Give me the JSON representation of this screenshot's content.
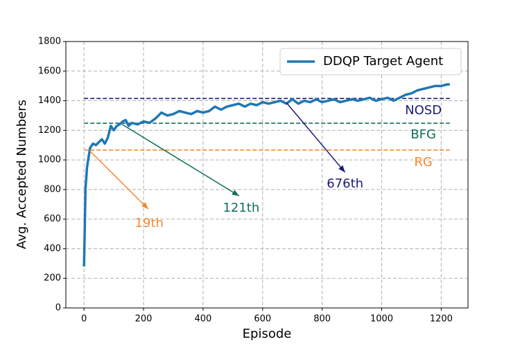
{
  "chart_data": {
    "type": "line",
    "xlabel": "Episode",
    "ylabel": "Avg. Accepted Numbers",
    "x": [
      0,
      5,
      10,
      20,
      30,
      40,
      50,
      60,
      70,
      80,
      90,
      100,
      110,
      120,
      130,
      140,
      150,
      160,
      180,
      200,
      220,
      240,
      260,
      280,
      300,
      320,
      340,
      360,
      380,
      400,
      420,
      440,
      460,
      480,
      500,
      520,
      540,
      560,
      580,
      600,
      620,
      640,
      660,
      680,
      700,
      720,
      740,
      760,
      780,
      800,
      820,
      840,
      860,
      880,
      900,
      920,
      940,
      960,
      980,
      1000,
      1020,
      1040,
      1060,
      1080,
      1100,
      1120,
      1140,
      1160,
      1180,
      1200,
      1220,
      1229
    ],
    "series": [
      {
        "name": "DDQP Target Agent",
        "color": "#1f77b4",
        "values": [
          280,
          800,
          950,
          1080,
          1110,
          1100,
          1120,
          1140,
          1110,
          1150,
          1230,
          1200,
          1230,
          1240,
          1260,
          1270,
          1230,
          1250,
          1240,
          1260,
          1250,
          1280,
          1320,
          1300,
          1310,
          1330,
          1320,
          1310,
          1330,
          1320,
          1330,
          1360,
          1340,
          1360,
          1370,
          1380,
          1360,
          1380,
          1370,
          1390,
          1380,
          1390,
          1400,
          1380,
          1410,
          1380,
          1400,
          1390,
          1410,
          1390,
          1400,
          1410,
          1390,
          1400,
          1410,
          1400,
          1410,
          1420,
          1400,
          1410,
          1420,
          1400,
          1420,
          1440,
          1450,
          1470,
          1480,
          1490,
          1500,
          1500,
          1510,
          1510
        ]
      }
    ],
    "hlines": [
      {
        "value": 1415,
        "color": "#1a1a7a",
        "xmin": 0,
        "xmax": 1229
      },
      {
        "value": 1248,
        "color": "#0f6e5a",
        "xmin": 0,
        "xmax": 1229
      },
      {
        "value": 1067,
        "color": "#f28a30",
        "xmin": 0,
        "xmax": 1229
      }
    ],
    "annotations": [
      {
        "text": "NOSD",
        "xy": [
          1140,
          1332
        ],
        "color": "#1a1a7a"
      },
      {
        "text": "BFG",
        "xy": [
          1140,
          1169
        ],
        "color": "#0f6e5a"
      },
      {
        "text": "RG",
        "xy": [
          1140,
          982
        ],
        "color": "#f28a30"
      },
      {
        "text": "19th",
        "xy": [
          19,
          1062
        ],
        "xytext": [
          219,
          570
        ],
        "arrow_end": [
          216,
          668
        ],
        "color": "#f28a30"
      },
      {
        "text": "121th",
        "xy": [
          128,
          1240
        ],
        "xytext": [
          528,
          673
        ],
        "arrow_end": [
          521,
          757
        ],
        "color": "#0f6e5a"
      },
      {
        "text": "676th",
        "xy": [
          679,
          1389
        ],
        "xytext": [
          877,
          837
        ],
        "arrow_end": [
          877,
          916
        ],
        "color": "#1a1a7a"
      }
    ],
    "xlim": [
      -61,
      1290
    ],
    "ylim": [
      0,
      1800
    ],
    "xticks": [
      0,
      200,
      400,
      600,
      800,
      1000,
      1200
    ],
    "yticks": [
      0,
      200,
      400,
      600,
      800,
      1000,
      1200,
      1400,
      1600,
      1800
    ],
    "grid": true,
    "legend": "upper right"
  }
}
